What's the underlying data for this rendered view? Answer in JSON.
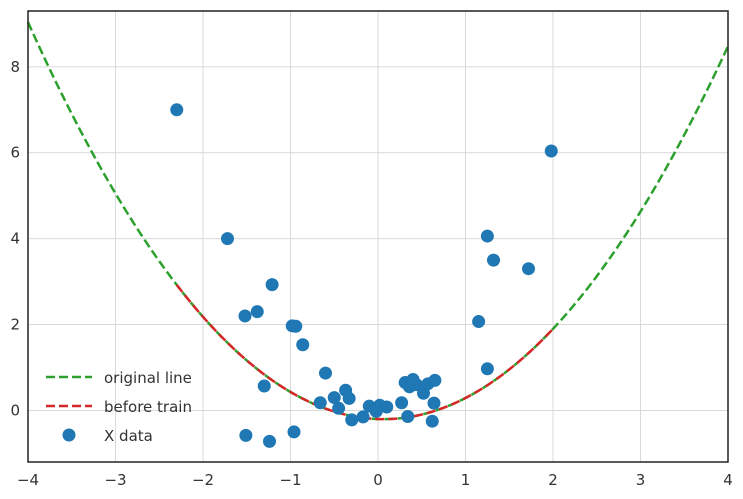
{
  "chart_data": {
    "type": "scatter",
    "title": "",
    "xlabel": "",
    "ylabel": "",
    "xlim": [
      -4,
      4
    ],
    "ylim": [
      -1.2,
      9.3
    ],
    "grid": true,
    "legend_position": "bottom-left",
    "x_ticks": [
      "−4",
      "−3",
      "−2",
      "−1",
      "0",
      "1",
      "2",
      "3",
      "4"
    ],
    "y_ticks": [
      "0",
      "2",
      "4",
      "6",
      "8"
    ],
    "x_tick_values": [
      -4,
      -3,
      -2,
      -1,
      0,
      1,
      2,
      3,
      4
    ],
    "y_tick_values": [
      0,
      2,
      4,
      6,
      8
    ],
    "series": [
      {
        "name": "original line",
        "kind": "line",
        "style": "dashed",
        "color": "#2ca02c",
        "x_range": [
          -4,
          4
        ],
        "equation": "0.56*x^2 - 0.07*x - 0.2"
      },
      {
        "name": "before train",
        "kind": "line",
        "style": "dashed",
        "color": "#d62728",
        "x_range": [
          -2.3,
          2.0
        ],
        "equation": "0.56*x^2 - 0.07*x - 0.2"
      },
      {
        "name": "X data",
        "kind": "scatter",
        "color": "#1f77b4",
        "points": [
          [
            -2.3,
            7.0
          ],
          [
            -1.72,
            4.0
          ],
          [
            -1.21,
            2.93
          ],
          [
            -1.38,
            2.3
          ],
          [
            -1.52,
            2.2
          ],
          [
            -0.98,
            1.97
          ],
          [
            -0.94,
            1.96
          ],
          [
            -0.86,
            1.53
          ],
          [
            -1.3,
            0.57
          ],
          [
            -0.6,
            0.87
          ],
          [
            -0.66,
            0.18
          ],
          [
            -0.5,
            0.3
          ],
          [
            -0.45,
            0.05
          ],
          [
            -0.37,
            0.47
          ],
          [
            -0.33,
            0.28
          ],
          [
            -0.3,
            -0.22
          ],
          [
            -0.17,
            -0.15
          ],
          [
            -0.1,
            0.1
          ],
          [
            0.02,
            0.12
          ],
          [
            0.1,
            0.08
          ],
          [
            -0.02,
            -0.02
          ],
          [
            0.27,
            0.18
          ],
          [
            0.31,
            0.65
          ],
          [
            0.36,
            0.55
          ],
          [
            0.4,
            0.72
          ],
          [
            0.44,
            0.6
          ],
          [
            0.52,
            0.4
          ],
          [
            0.57,
            0.62
          ],
          [
            0.65,
            0.7
          ],
          [
            0.34,
            -0.14
          ],
          [
            0.64,
            0.17
          ],
          [
            0.62,
            -0.25
          ],
          [
            1.15,
            2.07
          ],
          [
            1.25,
            4.06
          ],
          [
            1.32,
            3.5
          ],
          [
            1.72,
            3.3
          ],
          [
            1.25,
            0.97
          ],
          [
            1.98,
            6.04
          ],
          [
            -1.51,
            -0.58
          ],
          [
            -1.24,
            -0.72
          ],
          [
            -0.96,
            -0.5
          ]
        ]
      }
    ]
  }
}
